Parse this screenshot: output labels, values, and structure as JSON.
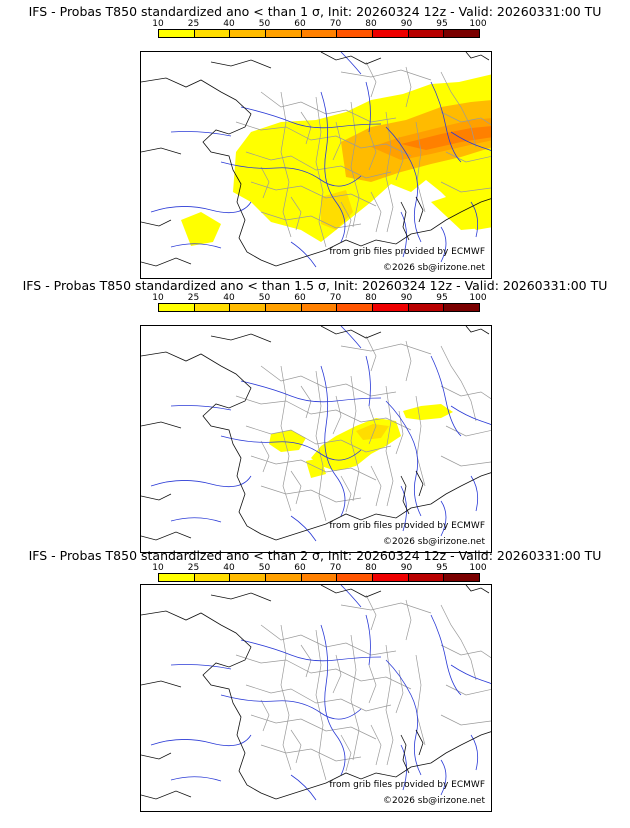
{
  "colorbar": {
    "labels": [
      "10",
      "25",
      "40",
      "50",
      "60",
      "70",
      "80",
      "90",
      "95",
      "100"
    ],
    "colors": [
      "#ffff00",
      "#ffdd00",
      "#ffbb00",
      "#ffa000",
      "#ff8000",
      "#ff5500",
      "#ee0000",
      "#b80000",
      "#7a0000"
    ]
  },
  "panels": [
    {
      "title": "IFS - Probas T850  standardized ano < than 1 σ, Init: 20260324 12z - Valid: 20260331:00 TU",
      "credit_source": "from grib files provided by ECMWF",
      "credit_copyright": "©2026 sb@irizone.net"
    },
    {
      "title": "IFS - Probas T850  standardized ano < than 1.5 σ, Init: 20260324 12z - Valid: 20260331:00 TU",
      "credit_source": "from grib files provided by ECMWF",
      "credit_copyright": "©2026 sb@irizone.net"
    },
    {
      "title": "IFS - Probas T850  standardized ano < than 2 σ, Init: 20260324 12z - Valid: 20260331:00 TU",
      "credit_source": "from grib files provided by ECMWF",
      "credit_copyright": "©2026 sb@irizone.net"
    }
  ],
  "colors": {
    "coast": "#000000",
    "rivers": "#2a3ad6",
    "borders": "#8f8f8f"
  }
}
